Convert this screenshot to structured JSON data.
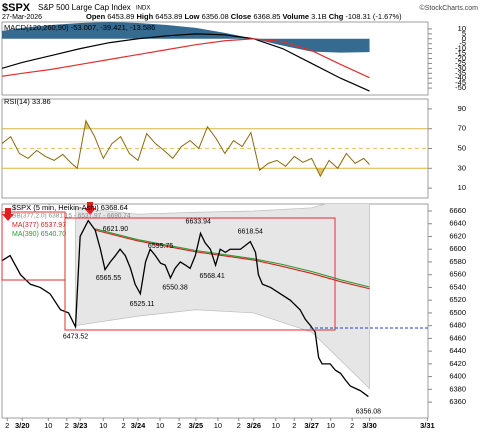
{
  "header": {
    "symbol": "$SPX",
    "name": "S&P 500 Large Cap Index",
    "exchange": "INDX",
    "credit": "©StockCharts.com",
    "date": "27-Mar-2026",
    "stats": [
      {
        "label": "Open",
        "value": "6453.89"
      },
      {
        "label": "High",
        "value": "6453.89"
      },
      {
        "label": "Low",
        "value": "6356.08"
      },
      {
        "label": "Close",
        "value": "6368.85"
      },
      {
        "label": "Volume",
        "value": "3.1B"
      },
      {
        "label": "Chg",
        "value": "-108.31 (-1.67%)"
      }
    ]
  },
  "chart_data": [
    {
      "type": "macd",
      "title": "MACD(120,260,90) -53.007, -39.421, -13.586",
      "xlim": [
        -0.35,
        7.01
      ],
      "ylim": [
        -57,
        17
      ],
      "yticks": [
        10,
        5,
        0,
        -5,
        -10,
        -15,
        -20,
        -25,
        -30,
        -35,
        -40,
        -45,
        -50
      ],
      "x": [
        -0.35,
        0,
        0.5,
        1,
        1.5,
        2,
        2.5,
        3,
        3.5,
        4,
        4.5,
        5,
        5.5,
        6
      ],
      "series": [
        {
          "color": "#000000",
          "values": [
            -30,
            -24,
            -17,
            -10,
            -4,
            0,
            3,
            5,
            4,
            0,
            -10,
            -25,
            -40,
            -53.007
          ]
        },
        {
          "color": "#e03030",
          "values": [
            -38,
            -35,
            -31,
            -26,
            -21,
            -16,
            -11,
            -6,
            -2,
            0,
            -3,
            -12,
            -26,
            -39.421
          ]
        }
      ],
      "histogram": {
        "color": "#1f5a85",
        "values": [
          8,
          11,
          14,
          16,
          17,
          16,
          14,
          11,
          6,
          0,
          -7,
          -13,
          -14,
          -13.586
        ]
      }
    },
    {
      "type": "rsi",
      "title": "RSI(14) 33.86",
      "xlim": [
        -0.35,
        7.01
      ],
      "ylim": [
        0,
        100
      ],
      "yticks": [
        90,
        70,
        50,
        30,
        10
      ],
      "overbought": 70,
      "oversold": 30,
      "centerline": 50,
      "level_color": "#d8b440",
      "x": [
        -0.35,
        -0.2,
        -0.05,
        0.1,
        0.25,
        0.4,
        0.55,
        0.7,
        0.85,
        0.95,
        1.1,
        1.25,
        1.4,
        1.55,
        1.7,
        1.85,
        2.0,
        2.15,
        2.3,
        2.45,
        2.6,
        2.75,
        2.9,
        3.05,
        3.2,
        3.35,
        3.5,
        3.65,
        3.8,
        3.95,
        4.1,
        4.25,
        4.4,
        4.55,
        4.7,
        4.85,
        5.0,
        5.15,
        5.3,
        5.45,
        5.6,
        5.75,
        5.9,
        6.0
      ],
      "series": [
        {
          "color": "#8a6a10",
          "values": [
            55,
            62,
            45,
            40,
            48,
            42,
            38,
            44,
            35,
            30,
            78,
            62,
            40,
            55,
            62,
            45,
            38,
            65,
            55,
            48,
            40,
            52,
            58,
            50,
            72,
            60,
            45,
            58,
            52,
            66,
            28,
            35,
            38,
            32,
            42,
            36,
            40,
            22,
            38,
            30,
            45,
            35,
            40,
            33.86
          ]
        }
      ]
    },
    {
      "type": "price",
      "xlim": [
        -0.35,
        7.01
      ],
      "ylim": [
        6335,
        6671
      ],
      "yticks": [
        6660,
        6640,
        6620,
        6600,
        6580,
        6560,
        6540,
        6520,
        6500,
        6480,
        6460,
        6440,
        6420,
        6400,
        6380,
        6360
      ],
      "xticks": [
        {
          "value": -0.26,
          "label": "2"
        },
        {
          "value": 0,
          "label": "3/20"
        },
        {
          "value": 0.45,
          "label": "10"
        },
        {
          "value": 0.77,
          "label": "2"
        },
        {
          "value": 1,
          "label": "3/23"
        },
        {
          "value": 1.4,
          "label": "10"
        },
        {
          "value": 1.75,
          "label": "2"
        },
        {
          "value": 2,
          "label": "3/24"
        },
        {
          "value": 2.38,
          "label": "10"
        },
        {
          "value": 2.71,
          "label": "2"
        },
        {
          "value": 3,
          "label": "3/25"
        },
        {
          "value": 3.38,
          "label": "10"
        },
        {
          "value": 3.74,
          "label": "2"
        },
        {
          "value": 4,
          "label": "3/26"
        },
        {
          "value": 4.38,
          "label": "10"
        },
        {
          "value": 4.7,
          "label": "2"
        },
        {
          "value": 5,
          "label": "3/27"
        },
        {
          "value": 5.33,
          "label": "10"
        },
        {
          "value": 5.7,
          "label": "2"
        },
        {
          "value": 6,
          "label": "3/30"
        },
        {
          "value": 7,
          "label": "3/31"
        }
      ],
      "band": {
        "name": "BB(377,2.0) 6381.15 - 6537.97 - 6690.74",
        "color": "#e6e6e6",
        "x": [
          0.92,
          2.0,
          3.0,
          4.0,
          5.0,
          6.0
        ],
        "upper": [
          6665,
          6655,
          6658,
          6660,
          6665,
          6690.74
        ],
        "lower": [
          6480,
          6495,
          6505,
          6500,
          6470,
          6381.15
        ]
      },
      "series": [
        {
          "name": "$SPX (5 min, Heikin-Ashi) 6368.64",
          "color": "#000000",
          "x": [
            -0.35,
            -0.21,
            -0.03,
            0.14,
            0.31,
            0.48,
            0.66,
            0.8,
            0.92,
            1.0,
            1.14,
            1.26,
            1.35,
            1.43,
            1.52,
            1.61,
            1.69,
            1.78,
            1.87,
            1.95,
            2.04,
            2.13,
            2.21,
            2.3,
            2.39,
            2.47,
            2.56,
            2.64,
            2.73,
            2.82,
            2.9,
            2.99,
            3.08,
            3.16,
            3.25,
            3.34,
            3.42,
            3.51,
            3.59,
            3.77,
            3.94,
            4.03,
            4.08,
            4.15,
            4.29,
            4.46,
            4.63,
            4.8,
            4.89,
            4.98,
            5.06,
            5.12,
            5.18,
            5.32,
            5.41,
            5.5,
            5.58,
            5.67,
            5.84,
            5.98
          ],
          "values": [
            6582,
            6590,
            6560,
            6545,
            6540,
            6530,
            6505,
            6500,
            6478,
            6620,
            6645,
            6630,
            6600,
            6568,
            6580,
            6590,
            6600,
            6590,
            6570,
            6545,
            6530,
            6580,
            6600,
            6590,
            6578,
            6575,
            6555,
            6570,
            6580,
            6575,
            6570,
            6590,
            6625,
            6610,
            6600,
            6575,
            6600,
            6595,
            6600,
            6600,
            6612,
            6595,
            6560,
            6545,
            6540,
            6530,
            6520,
            6505,
            6490,
            6480,
            6470,
            6430,
            6420,
            6420,
            6410,
            6405,
            6395,
            6385,
            6378,
            6368.64
          ]
        },
        {
          "name": "MA(377) 6537.97",
          "color": "#d62020",
          "x": [
            1.26,
            2.0,
            3.0,
            4.0,
            4.5,
            5.0,
            5.5,
            6.0
          ],
          "values": [
            6630,
            6613,
            6596,
            6583,
            6573,
            6562,
            6549,
            6537.97
          ]
        },
        {
          "name": "MA(390) 6540.70",
          "color": "#2e9a2e",
          "x": [
            1.26,
            2.0,
            3.0,
            4.0,
            4.5,
            5.0,
            5.5,
            6.0
          ],
          "values": [
            6632,
            6615,
            6598,
            6585,
            6576,
            6565,
            6552,
            6540.7
          ]
        }
      ],
      "annotations": [
        {
          "x": 1.61,
          "value": 6621.9,
          "label": "6621.90"
        },
        {
          "x": 3.04,
          "value": 6633.94,
          "label": "6633.94"
        },
        {
          "x": 3.94,
          "value": 6618.54,
          "label": "6618.54"
        },
        {
          "x": 2.39,
          "value": 6595.75,
          "label": "6595.75"
        },
        {
          "x": 1.49,
          "value": 6565.55,
          "label": "6565.55"
        },
        {
          "x": 2.64,
          "value": 6550.38,
          "label": "6550.38"
        },
        {
          "x": 3.28,
          "value": 6568.41,
          "label": "6568.41"
        },
        {
          "x": 2.07,
          "value": 6525.11,
          "label": "6525.11"
        },
        {
          "x": 0.92,
          "value": 6473.52,
          "label": "6473.52"
        },
        {
          "x": 5.98,
          "value": 6356.08,
          "label": "6356.08"
        }
      ]
    }
  ]
}
